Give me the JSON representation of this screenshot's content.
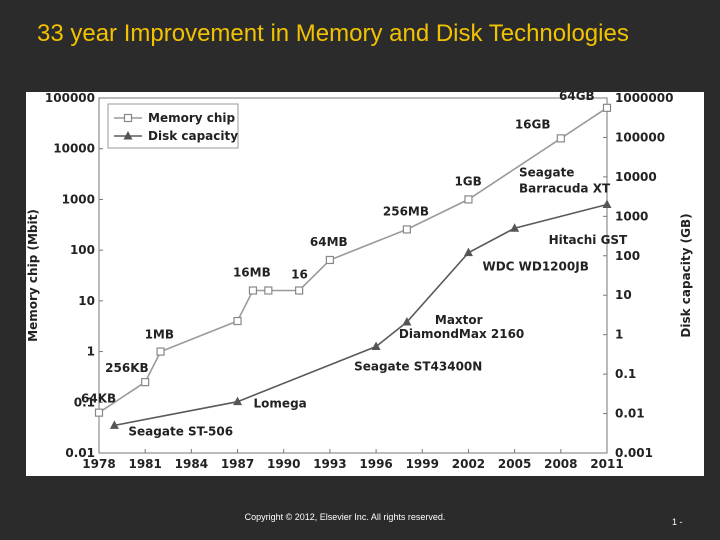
{
  "slide": {
    "title": "33 year Improvement in Memory and Disk Technologies",
    "footer_copyright": "Copyright © 2012, Elsevier Inc. All rights reserved.",
    "page_number": "1 -"
  },
  "chart_data": {
    "type": "line",
    "title": "",
    "xlabel": "",
    "ylabel": "Memory chip (Mbit)",
    "y2label": "Disk capacity (GB)",
    "x_ticks": [
      "1978",
      "1981",
      "1984",
      "1987",
      "1990",
      "1993",
      "1996",
      "1999",
      "2002",
      "2005",
      "2008",
      "2011"
    ],
    "xlim": [
      1978,
      2011
    ],
    "y_left_scale": "log",
    "y_left_ticks": [
      "0.01",
      "0.1",
      "1",
      "10",
      "100",
      "1000",
      "10000",
      "100000"
    ],
    "ylim_left": [
      0.01,
      100000
    ],
    "y_right_scale": "log",
    "y_right_ticks": [
      "0.001",
      "0.01",
      "0.1",
      "1",
      "10",
      "100",
      "1000",
      "10000",
      "100000",
      "1000000"
    ],
    "ylim_right": [
      0.001,
      1000000
    ],
    "grid": false,
    "legend": {
      "position": "top-left"
    },
    "series": [
      {
        "name": "Memory chip",
        "axis": "left",
        "marker": "open-square",
        "color": "#9a9a9a",
        "points": [
          {
            "x": 1978,
            "y": 0.0625,
            "label": "64KB"
          },
          {
            "x": 1981,
            "y": 0.25,
            "label": "256KB"
          },
          {
            "x": 1982,
            "y": 1,
            "label": "1MB"
          },
          {
            "x": 1987,
            "y": 4,
            "label": ""
          },
          {
            "x": 1988,
            "y": 16,
            "label": "16MB"
          },
          {
            "x": 1989,
            "y": 16,
            "label": ""
          },
          {
            "x": 1991,
            "y": 16,
            "label": "16"
          },
          {
            "x": 1993,
            "y": 64,
            "label": "64MB"
          },
          {
            "x": 1998,
            "y": 256,
            "label": "256MB"
          },
          {
            "x": 2002,
            "y": 1000,
            "label": "1GB"
          },
          {
            "x": 2008,
            "y": 16000,
            "label": "16GB"
          },
          {
            "x": 2011,
            "y": 64000,
            "label": "64GB"
          }
        ]
      },
      {
        "name": "Disk capacity",
        "axis": "right",
        "marker": "filled-triangle",
        "color": "#5a5a5a",
        "points": [
          {
            "x": 1979,
            "y": 0.005,
            "label": "Seagate ST-506"
          },
          {
            "x": 1987,
            "y": 0.02,
            "label": "Lomega"
          },
          {
            "x": 1996,
            "y": 0.5,
            "label": "Seagate ST43400N"
          },
          {
            "x": 1998,
            "y": 2.1,
            "label": "Maxtor DiamondMax 2160"
          },
          {
            "x": 2002,
            "y": 120,
            "label": "WDC WD1200JB"
          },
          {
            "x": 2005,
            "y": 500,
            "label": "Hitachi GST"
          },
          {
            "x": 2011,
            "y": 2000,
            "label": "Seagate Barracuda XT"
          }
        ]
      }
    ]
  }
}
